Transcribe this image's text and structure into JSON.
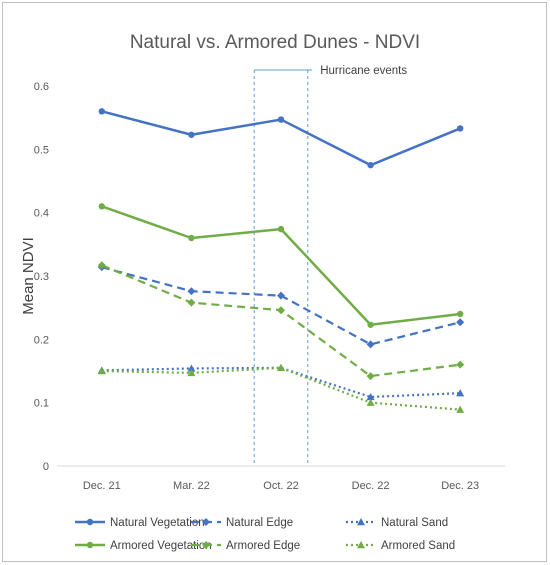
{
  "colors": {
    "natural": "#4472c4",
    "armored": "#70ad47",
    "axis": "#d9d9d9",
    "annotation": "#5b9bd5"
  },
  "chart_data": {
    "type": "line",
    "title": "Natural vs. Armored Dunes - NDVI",
    "ylabel": "Mean NDVI",
    "xlabel": "",
    "categories": [
      "Dec. 21",
      "Mar. 22",
      "Oct. 22",
      "Dec. 22",
      "Dec. 23"
    ],
    "ylim": [
      0,
      0.6
    ],
    "yticks": [
      "0",
      "0.1",
      "0.2",
      "0.3",
      "0.4",
      "0.5",
      "0.6"
    ],
    "grid": false,
    "legend_position": "bottom",
    "series": [
      {
        "name": "Natural Vegetation",
        "color": "#4472c4",
        "dash": "solid",
        "marker": "circle",
        "values": [
          0.56,
          0.523,
          0.547,
          0.475,
          0.533
        ]
      },
      {
        "name": "Natural Edge",
        "color": "#4472c4",
        "dash": "dash",
        "marker": "diamond",
        "values": [
          0.314,
          0.276,
          0.269,
          0.192,
          0.227
        ]
      },
      {
        "name": "Natural Sand",
        "color": "#4472c4",
        "dash": "dot",
        "marker": "triangle",
        "values": [
          0.151,
          0.154,
          0.155,
          0.109,
          0.115
        ]
      },
      {
        "name": "Armored Vegetation",
        "color": "#70ad47",
        "dash": "solid",
        "marker": "circle",
        "values": [
          0.41,
          0.36,
          0.374,
          0.223,
          0.24
        ]
      },
      {
        "name": "Armored Edge",
        "color": "#70ad47",
        "dash": "dash",
        "marker": "diamond",
        "values": [
          0.317,
          0.258,
          0.246,
          0.142,
          0.16
        ]
      },
      {
        "name": "Armored Sand",
        "color": "#70ad47",
        "dash": "dot",
        "marker": "triangle",
        "values": [
          0.15,
          0.147,
          0.155,
          0.1,
          0.089
        ]
      }
    ],
    "annotations": [
      {
        "label": "Hurricane events",
        "style": "dashed-band",
        "between": [
          "Mar. 22",
          "Oct. 22",
          "Dec. 22"
        ]
      }
    ]
  }
}
